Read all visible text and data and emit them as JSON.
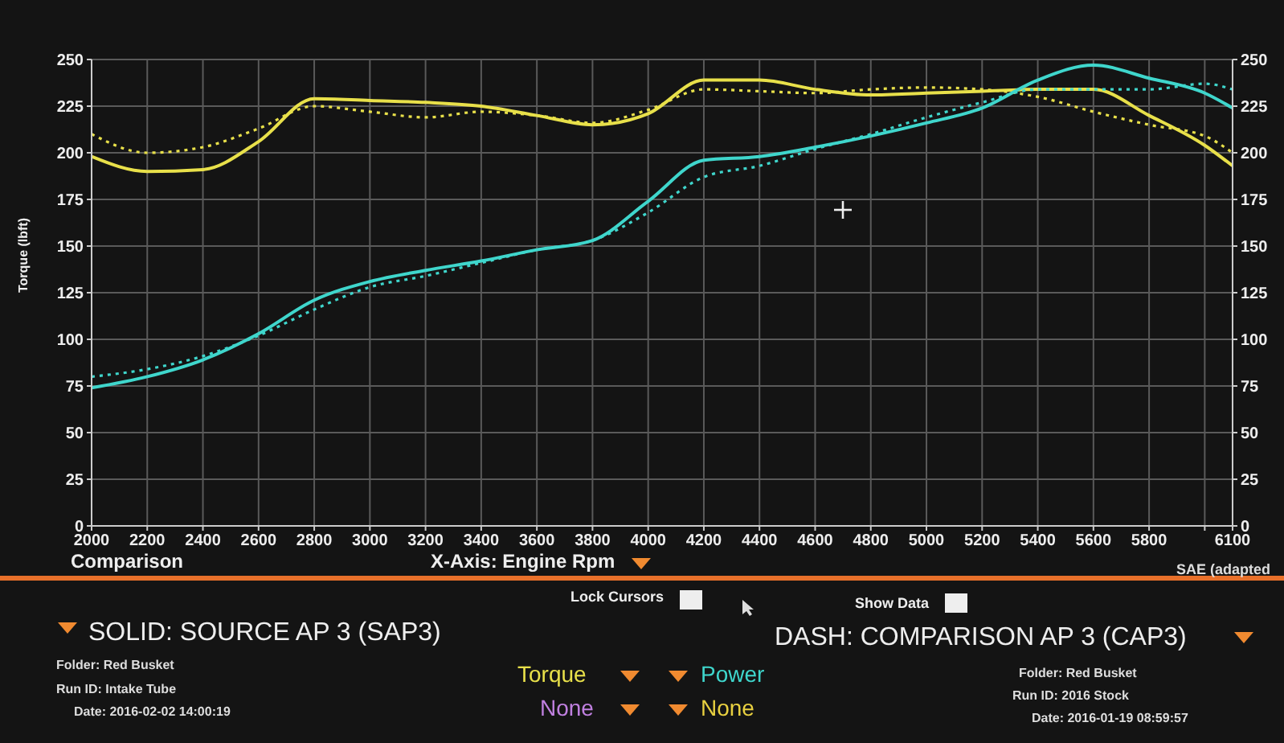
{
  "chart_data": {
    "type": "line",
    "xlabel": "X-Axis: Engine Rpm",
    "ylabel": "Torque (lbft)",
    "x": [
      2000,
      2200,
      2400,
      2600,
      2800,
      3000,
      3200,
      3400,
      3600,
      3800,
      4000,
      4200,
      4400,
      4600,
      4800,
      5000,
      5200,
      5400,
      5600,
      5800,
      6000,
      6100
    ],
    "series": [
      {
        "name": "Torque",
        "color": "#e8e04a",
        "line_style": "solid",
        "values": [
          198,
          190,
          191,
          206,
          229,
          228,
          227,
          225,
          220,
          215,
          221,
          239,
          239,
          234,
          231,
          232,
          233,
          234,
          234,
          220,
          204,
          193
        ]
      },
      {
        "color": "#e8e04a",
        "line_style": "dotted",
        "values": [
          210,
          200,
          203,
          213,
          225,
          222,
          219,
          222,
          220,
          216,
          223,
          234,
          233,
          232,
          234,
          235,
          234,
          230,
          222,
          215,
          209,
          200
        ]
      },
      {
        "name": "Power",
        "color": "#3fd6cc",
        "line_style": "solid",
        "values": [
          74,
          80,
          89,
          103,
          121,
          131,
          137,
          142,
          148,
          153,
          174,
          196,
          198,
          203,
          209,
          216,
          224,
          239,
          247,
          240,
          232,
          224
        ]
      },
      {
        "color": "#3fd6cc",
        "line_style": "dotted",
        "values": [
          80,
          84,
          91,
          102,
          116,
          128,
          134,
          141,
          148,
          153,
          168,
          187,
          193,
          202,
          210,
          219,
          227,
          234,
          234,
          234,
          237,
          234
        ]
      }
    ],
    "xlim": [
      2000,
      6100
    ],
    "xticks": [
      2000,
      2200,
      2400,
      2600,
      2800,
      3000,
      3200,
      3400,
      3600,
      3800,
      4000,
      4200,
      4400,
      4600,
      4800,
      5000,
      5200,
      5400,
      5600,
      5800,
      {
        "value": 6000,
        "label": null
      },
      6100
    ],
    "ylim": [
      0,
      250
    ],
    "yticks": [
      0,
      25,
      50,
      75,
      100,
      125,
      150,
      175,
      200,
      225,
      250
    ],
    "y2lim": [
      0,
      250
    ],
    "y2ticks": [
      0,
      25,
      50,
      75,
      100,
      125,
      150,
      175,
      200,
      225,
      250
    ],
    "grid": true,
    "annotations": [
      "Comparison",
      "SAE (adapted",
      "Lock Cursors",
      "Show Data",
      "SOLID: SOURCE AP 3 (SAP3)",
      "Folder: Red Busket",
      "Run ID: Intake Tube",
      "Date: 2016-02-02 14:00:19",
      "None",
      "None",
      "DASH: COMPARISON AP 3 (CAP3)",
      "Folder: Red Busket",
      "Run ID: 2016 Stock",
      "Date: 2016-01-19 08:59:57"
    ]
  }
}
